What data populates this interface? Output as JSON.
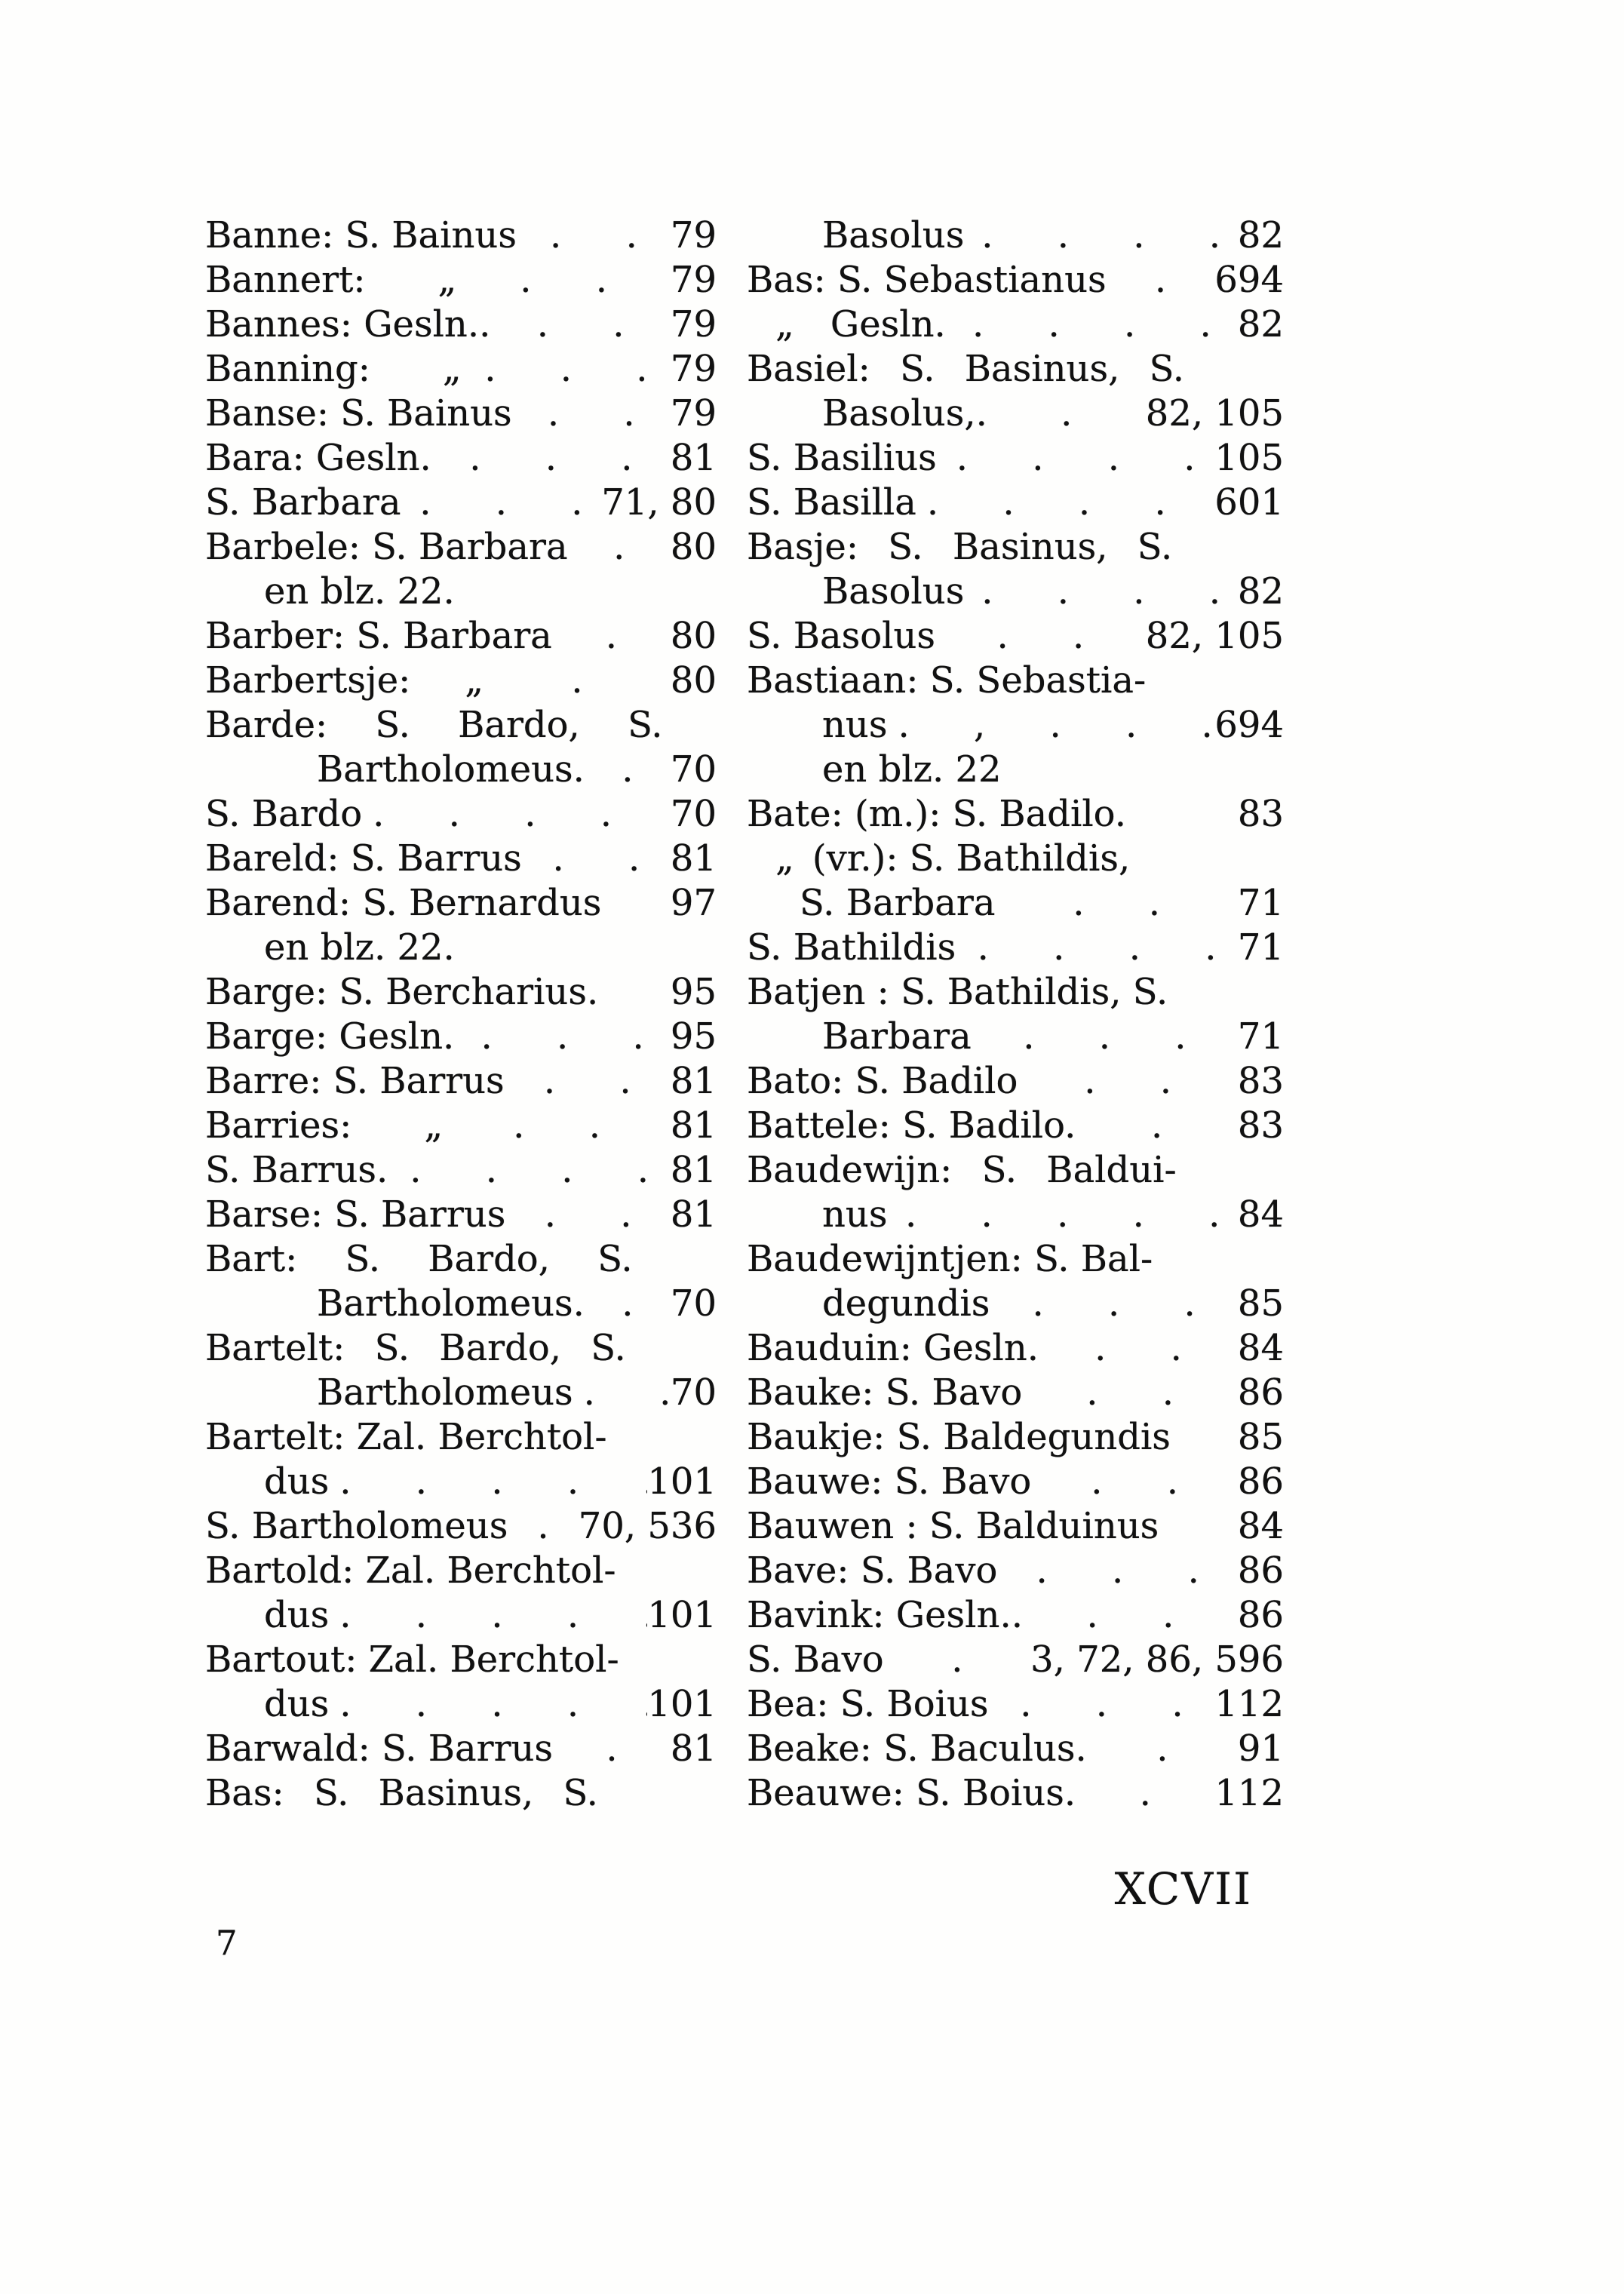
{
  "footer": {
    "roman_page_number": "XCVII",
    "signature_number": "7"
  },
  "columns": {
    "left": [
      {
        "t": "Banne: S. Bainus",
        "d": ". .",
        "p": "79"
      },
      {
        "t": "Bannert:  „",
        "d": ". .",
        "p": "79"
      },
      {
        "t": "Bannes: Gesln..",
        "d": ". .",
        "p": "79"
      },
      {
        "t": "Banning:  „",
        "d": ". . .",
        "p": "79"
      },
      {
        "t": "Banse: S. Bainus",
        "d": ". .",
        "p": "79"
      },
      {
        "t": "Bara: Gesln.",
        "d": ". . .",
        "p": "81"
      },
      {
        "t": "S. Barbara",
        "d": ". . .",
        "p": "71, 80"
      },
      {
        "t": "Barbele: S. Barbara",
        "d": ".",
        "p": "80"
      },
      {
        "ind": 1,
        "t": "en blz. 22.",
        "d": "",
        "p": ""
      },
      {
        "t": "Barber: S. Barbara",
        "d": ".",
        "p": "80"
      },
      {
        "t": "Barbertsje:  „",
        "d": ".",
        "p": "80"
      },
      {
        "t": "Barde: S. Bardo, S.",
        "sp": 2,
        "d": "",
        "p": ""
      },
      {
        "ind": 2,
        "t": "Bartholomeus.",
        "d": ".",
        "p": "70"
      },
      {
        "t": "S. Bardo",
        "d": ". . . . .",
        "p": "70"
      },
      {
        "t": "Bareld: S. Barrus",
        "d": ". .",
        "p": "81"
      },
      {
        "t": "Barend: S. Bernardus",
        "d": "",
        "p": "97"
      },
      {
        "ind": 1,
        "t": "en blz. 22.",
        "d": "",
        "p": ""
      },
      {
        "t": "Barge: S. Bercharius.",
        "d": "",
        "p": "95"
      },
      {
        "t": "Barge: Gesln.",
        "d": ". . .",
        "p": "95"
      },
      {
        "t": "Barre: S. Barrus",
        "d": ". .",
        "p": "81"
      },
      {
        "t": "Barries:  „",
        "d": ". .",
        "p": "81"
      },
      {
        "t": "S. Barrus.",
        "d": ". . . .",
        "p": "81"
      },
      {
        "t": "Barse: S. Barrus",
        "d": ". .",
        "p": "81"
      },
      {
        "t": "Bart: S. Bardo, S.",
        "sp": 2,
        "d": "",
        "p": ""
      },
      {
        "ind": 2,
        "t": "Bartholomeus.",
        "d": ".",
        "p": "70"
      },
      {
        "t": "Bartelt: S. Bardo, S.",
        "sp": 1,
        "d": "",
        "p": ""
      },
      {
        "ind": 2,
        "t": "Bartholomeus",
        "d": ". .",
        "p": "70"
      },
      {
        "t": "Bartelt: Zal. Berchtol-",
        "d": "",
        "p": ""
      },
      {
        "ind": 1,
        "t": "dus",
        "d": ". . . . .",
        "p": "101"
      },
      {
        "t": "S. Bartholomeus",
        "d": ".",
        "p": "70, 536"
      },
      {
        "t": "Bartold: Zal. Berchtol-",
        "d": "",
        "p": ""
      },
      {
        "ind": 1,
        "t": "dus",
        "d": ". . . . .",
        "p": "101"
      },
      {
        "t": "Bartout: Zal. Berchtol-",
        "d": "",
        "p": ""
      },
      {
        "ind": 1,
        "t": "dus",
        "d": ". . . . .",
        "p": "101"
      },
      {
        "t": "Barwald: S. Barrus",
        "d": ".",
        "p": "81"
      },
      {
        "t": "Bas: S. Basinus, S.",
        "sp": 1,
        "d": "",
        "p": ""
      }
    ],
    "right": [
      {
        "ind": 1,
        "t": "Basolus",
        "d": ". . . .",
        "p": "82"
      },
      {
        "t": "Bas: S. Sebastianus",
        "d": ".",
        "p": "694"
      },
      {
        "ind": 3,
        "t": "„ Gesln.",
        "d": ". . . .",
        "p": "82"
      },
      {
        "t": "Basiel: S. Basinus, S.",
        "sp": 1,
        "d": "",
        "p": ""
      },
      {
        "ind": 1,
        "t": "Basolus,.",
        "d": ".",
        "p": "82, 105"
      },
      {
        "t": "S. Basilius",
        "d": ". . . .",
        "p": "105"
      },
      {
        "t": "S. Basilla",
        "d": ". . . . .",
        "p": "601"
      },
      {
        "t": "Basje: S. Basinus, S.",
        "sp": 1,
        "d": "",
        "p": ""
      },
      {
        "ind": 1,
        "t": "Basolus",
        "d": ". . . .",
        "p": "82"
      },
      {
        "t": "S. Basolus",
        "d": ". .",
        "p": "82, 105"
      },
      {
        "t": "Bastiaan: S. Sebastia-",
        "d": "",
        "p": ""
      },
      {
        "ind": 1,
        "t": "nus",
        "d": ". , . . .",
        "p": "694"
      },
      {
        "ind": 1,
        "t": "en blz. 22",
        "d": "",
        "p": ""
      },
      {
        "t": "Bate: (m.): S. Badilo.",
        "d": "",
        "p": "83"
      },
      {
        "ind": 3,
        "t": "„ (vr.): S. Bathildis,",
        "d": "",
        "p": ""
      },
      {
        "ind": 2,
        "t": "S. Barbara",
        "d": ". .",
        "p": "71"
      },
      {
        "t": "S. Bathildis",
        "d": ". . . .",
        "p": "71"
      },
      {
        "t": "Batjen : S. Bathildis, S.",
        "d": "",
        "p": ""
      },
      {
        "ind": 1,
        "t": "Barbara",
        "d": ". . .",
        "p": "71"
      },
      {
        "t": "Bato: S. Badilo",
        "d": ". .",
        "p": "83"
      },
      {
        "t": "Battele: S. Badilo.",
        "d": ".",
        "p": "83"
      },
      {
        "t": "Baudewijn: S. Baldui-",
        "sp": 1,
        "d": "",
        "p": ""
      },
      {
        "ind": 1,
        "t": "nus",
        "d": ". . . . .",
        "p": "84"
      },
      {
        "t": "Baudewijntjen: S. Bal-",
        "d": "",
        "p": ""
      },
      {
        "ind": 1,
        "t": "degundis",
        "d": ". . .",
        "p": "85"
      },
      {
        "t": "Bauduin: Gesln.",
        "d": ". .",
        "p": "84"
      },
      {
        "t": "Bauke: S. Bavo",
        "d": ". .",
        "p": "86"
      },
      {
        "t": "Baukje: S. Baldegundis",
        "d": "",
        "p": "85"
      },
      {
        "t": "Bauwe: S. Bavo",
        "d": ". .",
        "p": "86"
      },
      {
        "t": "Bauwen : S. Balduinus",
        "d": "",
        "p": "84"
      },
      {
        "t": "Bave: S. Bavo",
        "d": ". . .",
        "p": "86"
      },
      {
        "t": "Bavink: Gesln..",
        "d": ". .",
        "p": "86"
      },
      {
        "t": "S. Bavo",
        "d": ".",
        "p": "3, 72, 86, 596"
      },
      {
        "t": "Bea: S. Boius",
        "d": ". . .",
        "p": "112"
      },
      {
        "t": "Beake: S. Baculus.",
        "d": ".",
        "p": "91"
      },
      {
        "t": "Beauwe: S. Boius.",
        "d": ".",
        "p": "112"
      }
    ]
  }
}
